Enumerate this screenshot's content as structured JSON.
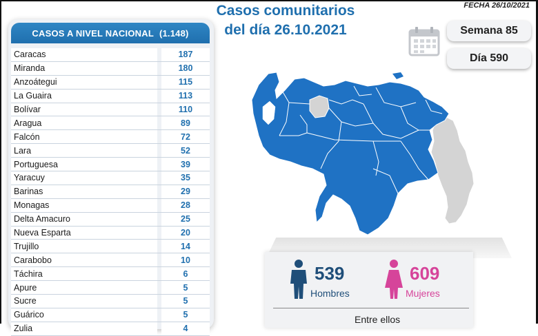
{
  "header": {
    "title_line1": "Casos comunitarios",
    "title_line2": "del día 26.10.2021",
    "fecha": "FECHA 26/10/2021"
  },
  "counters": {
    "week_label": "Semana 85",
    "day_label": "Día 590"
  },
  "national": {
    "label": "CASOS A NIVEL NACIONAL",
    "total": "(1.148)",
    "rows": [
      {
        "state": "Caracas",
        "cases": "187"
      },
      {
        "state": "Miranda",
        "cases": "180"
      },
      {
        "state": "Anzoátegui",
        "cases": "115"
      },
      {
        "state": "La Guaira",
        "cases": "113"
      },
      {
        "state": "Bolívar",
        "cases": "110"
      },
      {
        "state": "Aragua",
        "cases": "89"
      },
      {
        "state": "Falcón",
        "cases": "72"
      },
      {
        "state": "Lara",
        "cases": "52"
      },
      {
        "state": "Portuguesa",
        "cases": "39"
      },
      {
        "state": "Yaracuy",
        "cases": "35"
      },
      {
        "state": "Barinas",
        "cases": "29"
      },
      {
        "state": "Monagas",
        "cases": "28"
      },
      {
        "state": "Delta Amacuro",
        "cases": "25"
      },
      {
        "state": "Nueva Esparta",
        "cases": "20"
      },
      {
        "state": "Trujillo",
        "cases": "14"
      },
      {
        "state": "Carabobo",
        "cases": "10"
      },
      {
        "state": "Táchira",
        "cases": "6"
      },
      {
        "state": "Apure",
        "cases": "5"
      },
      {
        "state": "Sucre",
        "cases": "5"
      },
      {
        "state": "Guárico",
        "cases": "5"
      },
      {
        "state": "Zulia",
        "cases": "4"
      }
    ]
  },
  "gender": {
    "men_count": "539",
    "men_label": "Hombres",
    "women_count": "609",
    "women_label": "Mujeres",
    "men_color": "#1f4e79",
    "women_color": "#d6449a"
  },
  "footer": {
    "entre_label": "Entre ellos"
  },
  "colors": {
    "accent": "#1f6fae",
    "map_blue": "#1f72c4",
    "map_grey": "#d4d4d4"
  }
}
